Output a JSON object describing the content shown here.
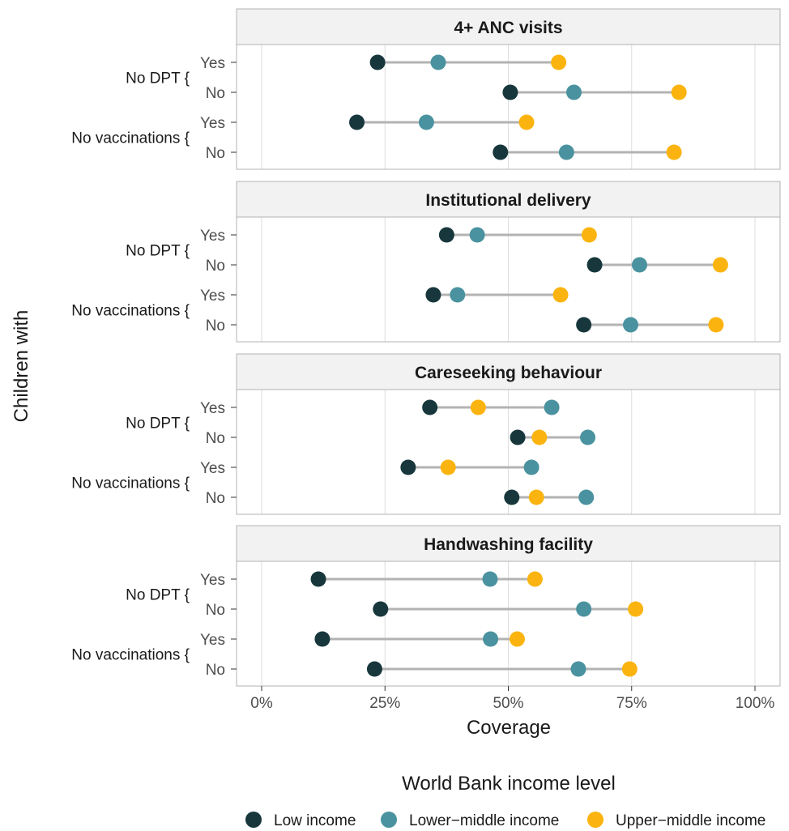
{
  "chart_data": {
    "type": "dot-range",
    "xlabel": "Coverage",
    "ylabel": "Children with",
    "xlim": [
      0,
      100
    ],
    "x_ticks": [
      0,
      25,
      50,
      75,
      100
    ],
    "x_tick_labels": [
      "0%",
      "25%",
      "50%",
      "75%",
      "100%"
    ],
    "grid": true,
    "legend": {
      "title": "World Bank income level",
      "position": "bottom",
      "entries": [
        {
          "name": "Low income",
          "color": "#17373c"
        },
        {
          "name": "Lower−middle income",
          "color": "#4a929f"
        },
        {
          "name": "Upper−middle income",
          "color": "#fbb40f"
        }
      ]
    },
    "row_groups": [
      {
        "label": "No DPT {",
        "rows": [
          "Yes",
          "No"
        ]
      },
      {
        "label": "No vaccinations {",
        "rows": [
          "Yes",
          "No"
        ]
      }
    ],
    "panels": [
      {
        "title": "4+ ANC visits",
        "rows": [
          {
            "group": "No DPT",
            "row": "Yes",
            "low": 23.5,
            "lower_middle": 35.8,
            "upper_middle": 60.2
          },
          {
            "group": "No DPT",
            "row": "No",
            "low": 50.4,
            "lower_middle": 63.3,
            "upper_middle": 84.6
          },
          {
            "group": "No vaccinations",
            "row": "Yes",
            "low": 19.3,
            "lower_middle": 33.4,
            "upper_middle": 53.7
          },
          {
            "group": "No vaccinations",
            "row": "No",
            "low": 48.4,
            "lower_middle": 61.8,
            "upper_middle": 83.6
          }
        ]
      },
      {
        "title": "Institutional delivery",
        "rows": [
          {
            "group": "No DPT",
            "row": "Yes",
            "low": 37.5,
            "lower_middle": 43.7,
            "upper_middle": 66.4
          },
          {
            "group": "No DPT",
            "row": "No",
            "low": 67.5,
            "lower_middle": 76.6,
            "upper_middle": 93.0
          },
          {
            "group": "No vaccinations",
            "row": "Yes",
            "low": 34.8,
            "lower_middle": 39.7,
            "upper_middle": 60.6
          },
          {
            "group": "No vaccinations",
            "row": "No",
            "low": 65.3,
            "lower_middle": 74.8,
            "upper_middle": 92.1
          }
        ]
      },
      {
        "title": "Careseeking behaviour",
        "rows": [
          {
            "group": "No DPT",
            "row": "Yes",
            "low": 34.1,
            "lower_middle": 58.8,
            "upper_middle": 43.9
          },
          {
            "group": "No DPT",
            "row": "No",
            "low": 51.9,
            "lower_middle": 66.1,
            "upper_middle": 56.3
          },
          {
            "group": "No vaccinations",
            "row": "Yes",
            "low": 29.7,
            "lower_middle": 54.7,
            "upper_middle": 37.8
          },
          {
            "group": "No vaccinations",
            "row": "No",
            "low": 50.7,
            "lower_middle": 65.8,
            "upper_middle": 55.7
          }
        ]
      },
      {
        "title": "Handwashing facility",
        "rows": [
          {
            "group": "No DPT",
            "row": "Yes",
            "low": 11.5,
            "lower_middle": 46.3,
            "upper_middle": 55.4
          },
          {
            "group": "No DPT",
            "row": "No",
            "low": 24.1,
            "lower_middle": 65.3,
            "upper_middle": 75.8
          },
          {
            "group": "No vaccinations",
            "row": "Yes",
            "low": 12.3,
            "lower_middle": 46.4,
            "upper_middle": 51.8
          },
          {
            "group": "No vaccinations",
            "row": "No",
            "low": 22.9,
            "lower_middle": 64.2,
            "upper_middle": 74.6
          }
        ]
      }
    ]
  }
}
